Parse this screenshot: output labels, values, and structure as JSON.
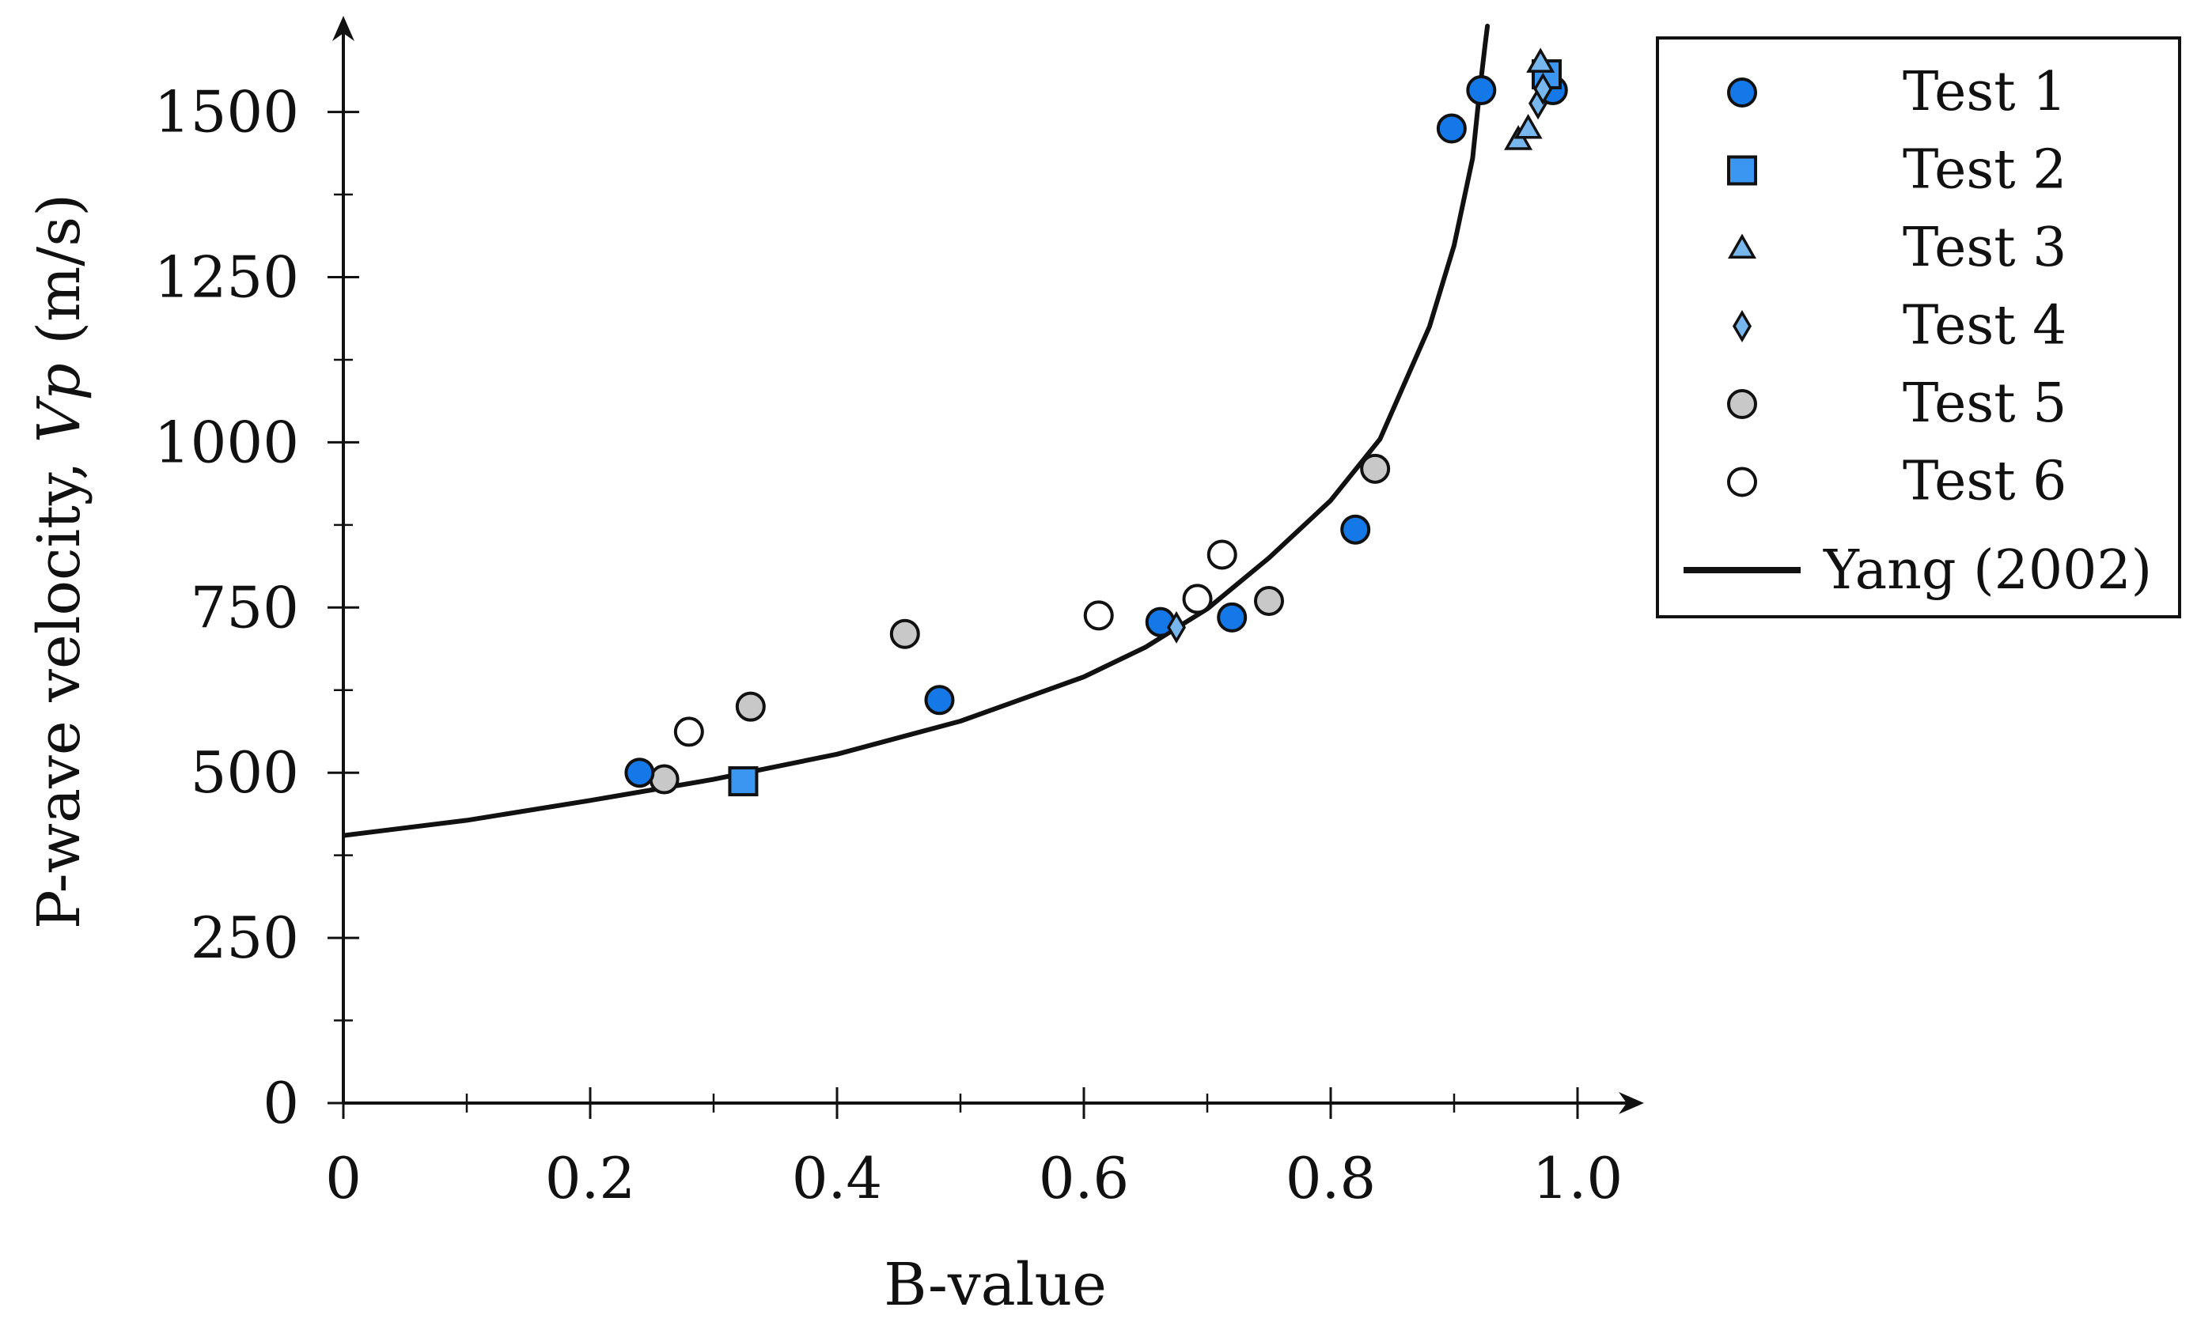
{
  "colors": {
    "test1": "#1478e8",
    "test2": "#3a96f0",
    "test3": "#78b6ee",
    "test4": "#78b6ee",
    "test5": "#c8c8c8",
    "test6": "#ffffff",
    "marker_stroke": "#111111",
    "curve": "#111111",
    "axis": "#111111"
  },
  "chart_data": {
    "type": "scatter",
    "xlabel": "B-value",
    "ylabel_prefix": "P-wave velocity,",
    "ylabel_var": "Vp",
    "ylabel_unit": "(m/s)",
    "xlim": [
      0,
      1.05
    ],
    "ylim": [
      0,
      1630
    ],
    "x_major_ticks": [
      0,
      0.2,
      0.4,
      0.6,
      0.8,
      1.0
    ],
    "x_tick_labels": [
      "0",
      "0.2",
      "0.4",
      "0.6",
      "0.8",
      "1.0"
    ],
    "x_minor_ticks": [
      0.1,
      0.3,
      0.5,
      0.7,
      0.9
    ],
    "y_major_ticks": [
      0,
      250,
      500,
      750,
      1000,
      1250,
      1500
    ],
    "y_tick_labels": [
      "0",
      "250",
      "500",
      "750",
      "1000",
      "1250",
      "1500"
    ],
    "y_minor_ticks": [
      125,
      375,
      625,
      875,
      1125,
      1375
    ],
    "grid": false,
    "legend_position": "outside-right-top",
    "series": [
      {
        "name": "Test 1",
        "marker": "circle",
        "color_key": "test1",
        "points": [
          [
            0.24,
            500
          ],
          [
            0.483,
            610
          ],
          [
            0.662,
            728
          ],
          [
            0.72,
            735
          ],
          [
            0.82,
            868
          ],
          [
            0.898,
            1475
          ],
          [
            0.922,
            1533
          ],
          [
            0.98,
            1533
          ]
        ]
      },
      {
        "name": "Test 2",
        "marker": "square",
        "color_key": "test2",
        "points": [
          [
            0.324,
            487
          ],
          [
            0.975,
            1557
          ]
        ]
      },
      {
        "name": "Test 3",
        "marker": "triangle",
        "color_key": "test3",
        "points": [
          [
            0.952,
            1458
          ],
          [
            0.96,
            1475
          ],
          [
            0.97,
            1575
          ]
        ]
      },
      {
        "name": "Test 4",
        "marker": "diamond",
        "color_key": "test4",
        "points": [
          [
            0.675,
            720
          ],
          [
            0.968,
            1513
          ],
          [
            0.972,
            1535
          ]
        ]
      },
      {
        "name": "Test 5",
        "marker": "circle",
        "color_key": "test5",
        "points": [
          [
            0.26,
            490
          ],
          [
            0.33,
            600
          ],
          [
            0.455,
            710
          ],
          [
            0.75,
            760
          ],
          [
            0.836,
            960
          ]
        ]
      },
      {
        "name": "Test 6",
        "marker": "circle",
        "color_key": "test6",
        "points": [
          [
            0.28,
            562
          ],
          [
            0.612,
            738
          ],
          [
            0.692,
            763
          ],
          [
            0.712,
            830
          ]
        ]
      },
      {
        "name": "Yang (2002)",
        "marker": "line",
        "color_key": "curve",
        "points": [
          [
            0,
            405
          ],
          [
            0.1,
            428
          ],
          [
            0.2,
            458
          ],
          [
            0.3,
            490
          ],
          [
            0.4,
            528
          ],
          [
            0.5,
            578
          ],
          [
            0.6,
            645
          ],
          [
            0.65,
            690
          ],
          [
            0.7,
            748
          ],
          [
            0.75,
            825
          ],
          [
            0.8,
            912
          ],
          [
            0.84,
            1005
          ],
          [
            0.88,
            1175
          ],
          [
            0.9,
            1298
          ],
          [
            0.915,
            1430
          ],
          [
            0.92,
            1520
          ],
          [
            0.925,
            1600
          ],
          [
            0.927,
            1630
          ]
        ]
      }
    ]
  }
}
